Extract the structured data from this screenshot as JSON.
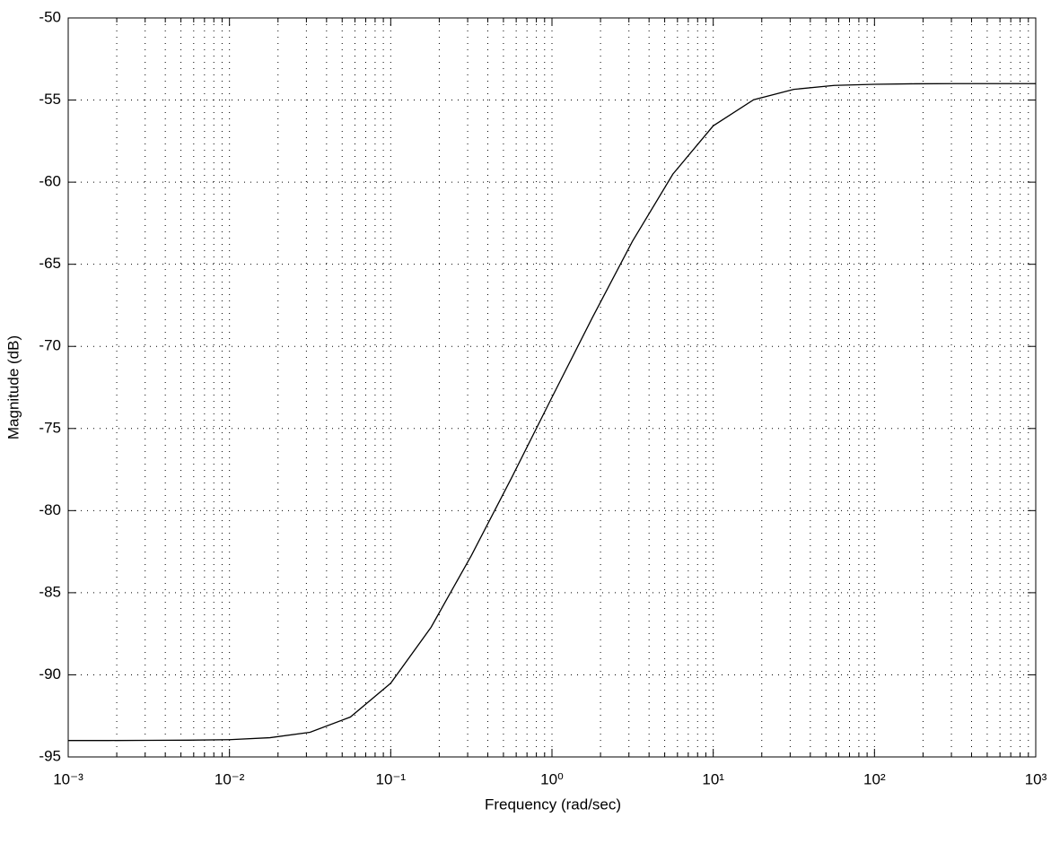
{
  "chart_data": {
    "type": "line",
    "xlabel": "Frequency  (rad/sec)",
    "ylabel": "Magnitude (dB)",
    "x": [
      0.001,
      0.00178,
      0.00316,
      0.00562,
      0.01,
      0.0178,
      0.0316,
      0.0562,
      0.1,
      0.178,
      0.316,
      0.562,
      1,
      1.78,
      3.16,
      5.62,
      10,
      17.8,
      31.6,
      56.2,
      100,
      178,
      316,
      562,
      1000
    ],
    "values": [
      -94.0,
      -94.0,
      -93.99,
      -93.98,
      -93.95,
      -93.83,
      -93.5,
      -92.57,
      -90.51,
      -87.1,
      -82.74,
      -78.0,
      -73.1,
      -68.25,
      -63.59,
      -59.51,
      -56.57,
      -54.98,
      -54.35,
      -54.11,
      -54.04,
      -54.01,
      -54.0,
      -54.0,
      -54.0
    ],
    "color": "#000000",
    "xscale": "log",
    "xlim": [
      0.001,
      1000
    ],
    "xticks": [
      {
        "value": 0.001,
        "label": "10⁻³"
      },
      {
        "value": 0.01,
        "label": "10⁻²"
      },
      {
        "value": 0.1,
        "label": "10⁻¹"
      },
      {
        "value": 1,
        "label": "10⁰"
      },
      {
        "value": 10,
        "label": "10¹"
      },
      {
        "value": 100,
        "label": "10²"
      },
      {
        "value": 1000,
        "label": "10³"
      }
    ],
    "ylim": [
      -95,
      -50
    ],
    "yticks": [
      -95,
      -90,
      -85,
      -80,
      -75,
      -70,
      -65,
      -60,
      -55,
      -50
    ],
    "grid": true,
    "minor_grid": true
  }
}
